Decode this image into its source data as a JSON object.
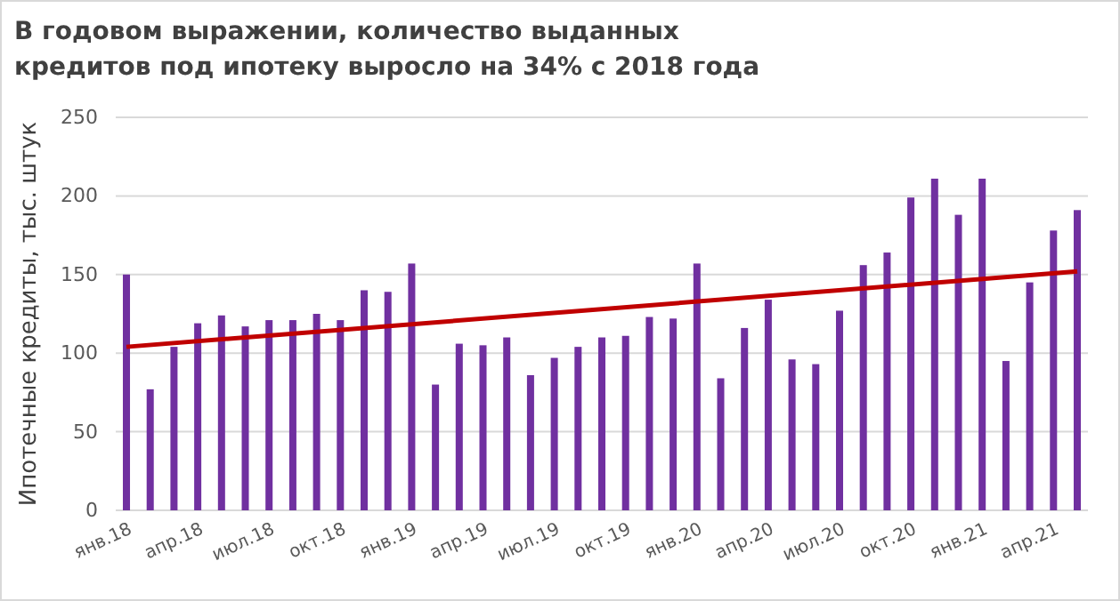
{
  "chart_data": {
    "type": "bar",
    "title": "В годовом выражении, количество выданных кредитов под ипотеку выросло  на 34% с 2018 года",
    "ylabel": "Ипотечные кредиты, тыс. штук",
    "categories": [
      "янв.18",
      null,
      null,
      "апр.18",
      null,
      null,
      "июл.18",
      null,
      null,
      "окт.18",
      null,
      null,
      "янв.19",
      null,
      null,
      "апр.19",
      null,
      null,
      "июл.19",
      null,
      null,
      "окт.19",
      null,
      null,
      "янв.20",
      null,
      null,
      "апр.20",
      null,
      null,
      "июл.20",
      null,
      null,
      "окт.20",
      null,
      null,
      "янв.21",
      null,
      null,
      "апр.21",
      null
    ],
    "series": [
      {
        "color": "#7030a0",
        "values": [
          150,
          77,
          104,
          119,
          124,
          117,
          121,
          121,
          125,
          121,
          140,
          139,
          157,
          80,
          106,
          105,
          110,
          86,
          97,
          104,
          110,
          111,
          123,
          122,
          157,
          84,
          116,
          134,
          96,
          93,
          127,
          156,
          164,
          199,
          211,
          188,
          211,
          95,
          145,
          178,
          191
        ]
      },
      {
        "type": "line",
        "color": "#c00000",
        "values": [
          104,
          null,
          null,
          null,
          null,
          null,
          null,
          null,
          null,
          null,
          null,
          null,
          null,
          null,
          null,
          null,
          null,
          null,
          null,
          null,
          null,
          null,
          null,
          null,
          null,
          null,
          null,
          null,
          null,
          null,
          null,
          null,
          null,
          null,
          null,
          null,
          null,
          null,
          null,
          null,
          152
        ]
      }
    ],
    "ylim": [
      0,
      250
    ],
    "yticks": [
      0,
      50,
      100,
      150,
      200,
      250
    ],
    "grid": "y"
  }
}
